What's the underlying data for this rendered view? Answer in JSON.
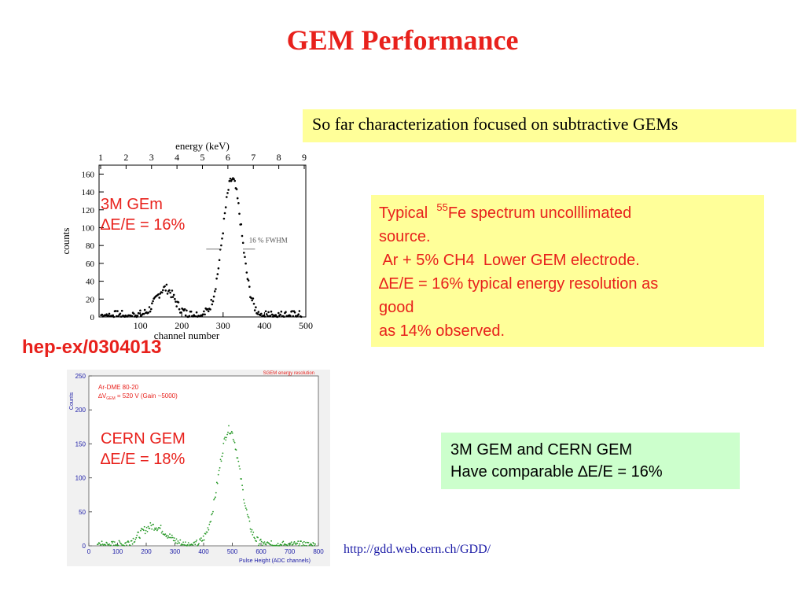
{
  "slide": {
    "title": "GEM Performance",
    "top_box": "So far characterization  focused on subtractive GEMs",
    "typical": {
      "pre": "Typical  ",
      "iso_mass": "55",
      "line1_rest": "Fe spectrum uncolllimated",
      "line2": "source.",
      "line3": " Ar + 5% CH4  Lower GEM electrode.",
      "line4": "∆E/E = 16% typical energy resolution as",
      "line5": "good",
      "line6": "as 14% observed."
    },
    "compare": {
      "line1": "3M GEM and CERN GEM",
      "line2": "Have comparable ∆E/E = 16%"
    },
    "ref": "hep-ex/0304013",
    "url": "http://gdd.web.cern.ch/GDD/"
  },
  "chart_data": [
    {
      "type": "scatter",
      "title": "",
      "top_axis_label": "energy  (keV)",
      "top_axis_ticks": [
        "1",
        "2",
        "3",
        "4",
        "5",
        "6",
        "7",
        "8",
        "9"
      ],
      "xlabel": "channel  number",
      "ylabel": "counts",
      "xlim": [
        0,
        500
      ],
      "ylim": [
        0,
        170
      ],
      "x_ticks": [
        "100",
        "200",
        "300",
        "400",
        "500"
      ],
      "y_ticks": [
        "0",
        "20",
        "40",
        "60",
        "80",
        "100",
        "120",
        "140",
        "160"
      ],
      "fwhm_label": "16 % FWHM",
      "annotation": [
        "3M GEm",
        "∆E/E = 16%"
      ],
      "peaks": [
        {
          "center": 160,
          "height": 30,
          "width": 22
        },
        {
          "center": 322,
          "height": 152,
          "width": 23
        }
      ]
    },
    {
      "type": "scatter",
      "title": "SGEM energy resolution",
      "legend_text": [
        "Ar-DME 80-20",
        "∆V",
        "GEM",
        "= 520 V (Gain ~5000)"
      ],
      "xlabel": "Pulse Height (ADC  channels)",
      "ylabel": "Counts",
      "xlim": [
        0,
        800
      ],
      "ylim": [
        0,
        250
      ],
      "x_ticks": [
        "0",
        "100",
        "200",
        "300",
        "400",
        "500",
        "600",
        "700",
        "800"
      ],
      "y_ticks": [
        "0",
        "50",
        "100",
        "150",
        "200",
        "250"
      ],
      "annotation": [
        "CERN GEM",
        "∆E/E = 18%"
      ],
      "peaks": [
        {
          "center": 225,
          "height": 28,
          "width": 45
        },
        {
          "center": 490,
          "height": 170,
          "width": 38
        }
      ]
    }
  ],
  "colors": {
    "title": "#e8211c",
    "yellow_box": "#ffff99",
    "green_box": "#ccffcc",
    "plot2_points": "#2a9a2a",
    "link": "#1a1aa6"
  }
}
